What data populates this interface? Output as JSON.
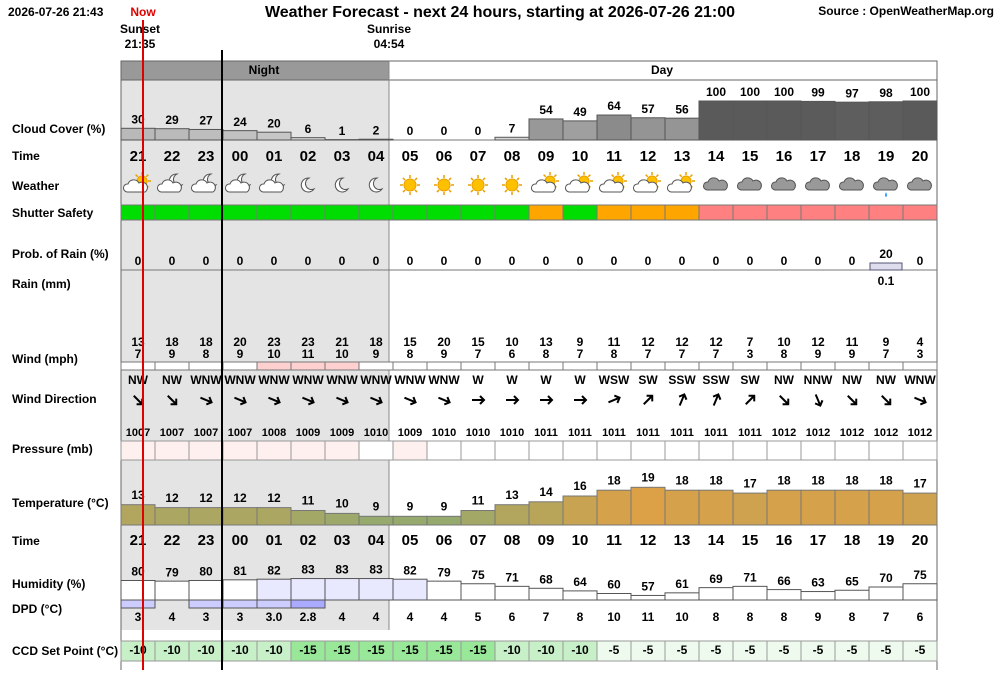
{
  "header": {
    "timestamp": "2026-07-26 21:43",
    "now": "Now",
    "title": "Weather Forecast - next 24 hours, starting at 2026-07-26 21:00",
    "source": "Source : OpenWeatherMap.org",
    "sunset": {
      "label": "Sunset",
      "time": "21:35"
    },
    "sunrise": {
      "label": "Sunrise",
      "time": "04:54"
    },
    "night": "Night",
    "day": "Day"
  },
  "row_labels": [
    "Cloud Cover (%)",
    "Time",
    "Weather",
    "Shutter Safety",
    "Prob. of Rain (%)",
    "Rain (mm)",
    "Wind (mph)",
    "Wind Direction",
    "Pressure (mb)",
    "Temperature (°C)",
    "Time",
    "Humidity (%)",
    "DPD (°C)",
    "CCD Set Point (°C)"
  ],
  "hours": [
    "21",
    "22",
    "23",
    "00",
    "01",
    "02",
    "03",
    "04",
    "05",
    "06",
    "07",
    "08",
    "09",
    "10",
    "11",
    "12",
    "13",
    "14",
    "15",
    "16",
    "17",
    "18",
    "19",
    "20"
  ],
  "cloud_cover": [
    30,
    29,
    27,
    24,
    20,
    6,
    1,
    2,
    0,
    0,
    0,
    7,
    54,
    49,
    64,
    57,
    56,
    100,
    100,
    100,
    99,
    97,
    98,
    100
  ],
  "shutter_safety": [
    "#00dd00",
    "#00dd00",
    "#00dd00",
    "#00dd00",
    "#00dd00",
    "#00dd00",
    "#00dd00",
    "#00dd00",
    "#00dd00",
    "#00dd00",
    "#00dd00",
    "#00dd00",
    "#ffa500",
    "#00dd00",
    "#ffa500",
    "#ffa500",
    "#ffa500",
    "#ff8080",
    "#ff8080",
    "#ff8080",
    "#ff8080",
    "#ff8080",
    "#ff8080",
    "#ff8080"
  ],
  "rain_probability": [
    0,
    0,
    0,
    0,
    0,
    0,
    0,
    0,
    0,
    0,
    0,
    0,
    0,
    0,
    0,
    0,
    0,
    0,
    0,
    0,
    0,
    0,
    20,
    0
  ],
  "rain_mm": [
    null,
    null,
    null,
    null,
    null,
    null,
    null,
    null,
    null,
    null,
    null,
    null,
    null,
    null,
    null,
    null,
    null,
    null,
    null,
    null,
    null,
    null,
    0.1,
    null
  ],
  "wind_gust": [
    13,
    18,
    18,
    20,
    23,
    23,
    21,
    18,
    15,
    20,
    15,
    10,
    13,
    9,
    11,
    12,
    12,
    12,
    7,
    10,
    12,
    11,
    9,
    4
  ],
  "wind_speed": [
    7,
    9,
    8,
    9,
    10,
    11,
    10,
    9,
    8,
    9,
    7,
    6,
    8,
    7,
    8,
    7,
    7,
    7,
    3,
    8,
    9,
    9,
    7,
    3
  ],
  "wind_direction": [
    "NW",
    "NW",
    "WNW",
    "WNW",
    "WNW",
    "WNW",
    "WNW",
    "WNW",
    "WNW",
    "WNW",
    "W",
    "W",
    "W",
    "W",
    "WSW",
    "SW",
    "SSW",
    "SSW",
    "SW",
    "NW",
    "NNW",
    "NW",
    "NW",
    "WNW"
  ],
  "pressure": [
    1007,
    1007,
    1007,
    1007,
    1008,
    1009,
    1009,
    1010,
    1009,
    1010,
    1010,
    1010,
    1011,
    1011,
    1011,
    1011,
    1011,
    1011,
    1011,
    1012,
    1012,
    1012,
    1012,
    1012
  ],
  "temperature": [
    13,
    12,
    12,
    12,
    12,
    11,
    10,
    9,
    9,
    9,
    11,
    13,
    14,
    16,
    18,
    19,
    18,
    18,
    17,
    18,
    18,
    18,
    18,
    17
  ],
  "humidity": [
    80,
    79,
    80,
    81,
    82,
    83,
    83,
    83,
    82,
    79,
    75,
    71,
    68,
    64,
    60,
    57,
    61,
    69,
    71,
    66,
    63,
    65,
    70,
    75
  ],
  "dpd": {
    "values": [
      3,
      4,
      3,
      3,
      3,
      2.8,
      4,
      4,
      4,
      4,
      5,
      6,
      7,
      8,
      10,
      11,
      10,
      8,
      8,
      8,
      9,
      8,
      7,
      6
    ],
    "value_labels": [
      "3",
      "4",
      "3",
      "3",
      "3.0",
      "2.8",
      "4",
      "4",
      "4",
      "4",
      "5",
      "6",
      "7",
      "8",
      "10",
      "11",
      "10",
      "8",
      "8",
      "8",
      "9",
      "8",
      "7",
      "6"
    ]
  },
  "ccd_set_point": [
    -10,
    -10,
    -10,
    -10,
    -10,
    -15,
    -15,
    -15,
    -15,
    -15,
    -15,
    -10,
    -10,
    -10,
    -5,
    -5,
    -5,
    -5,
    -5,
    -5,
    -5,
    -5,
    -5,
    -5
  ]
}
